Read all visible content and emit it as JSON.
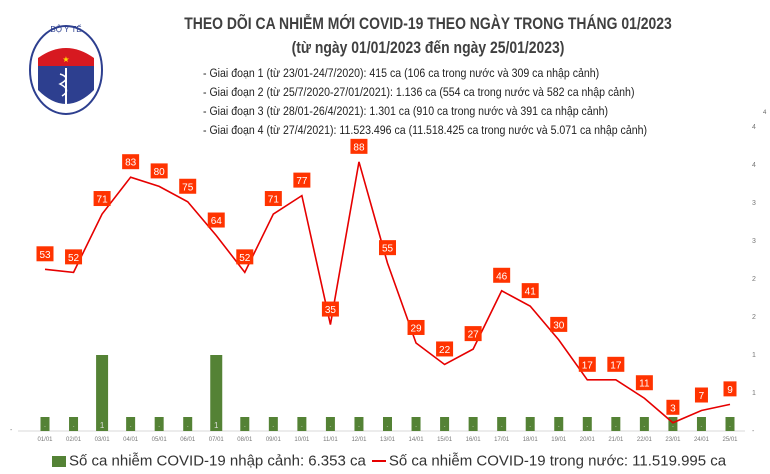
{
  "header": {
    "title_line1": "THEO DÕI CA NHIỄM MỚI COVID-19 THEO NGÀY TRONG THÁNG 01/2023",
    "title_line2": "(từ ngày 01/01/2023 đến ngày 25/01/2023)",
    "periods": [
      "- Giai đoạn 1 (từ 23/01-24/7/2020): 415 ca (106 ca trong nước và 309 ca nhập cảnh)",
      "- Giai đoạn 2 (từ 25/7/2020-27/01/2021): 1.136 ca (554 ca trong nước và 582 ca nhập cảnh)",
      "- Giai đoạn 3 (từ 28/01-26/4/2021): 1.301 ca (910 ca trong nước và 391 ca nhập cảnh)",
      "- Giai đoạn 4 (từ 27/4/2021): 11.523.496 ca (11.518.425 ca trong nước và 5.071 ca nhập cảnh)"
    ],
    "logo_text_top": "BỘ Y TẾ",
    "logo_text_bottom": "MINISTRY OF HEALTH"
  },
  "chart_data": {
    "type": "bar+line",
    "categories": [
      "01/01",
      "02/01",
      "03/01",
      "04/01",
      "05/01",
      "06/01",
      "07/01",
      "08/01",
      "09/01",
      "10/01",
      "11/01",
      "12/01",
      "13/01",
      "14/01",
      "15/01",
      "16/01",
      "17/01",
      "18/01",
      "19/01",
      "20/01",
      "21/01",
      "22/01",
      "23/01",
      "24/01",
      "25/01"
    ],
    "series": [
      {
        "name": "Số ca nhiễm COVID-19 nhập cảnh: 6.353 ca",
        "type": "bar",
        "color": "#548235",
        "values": [
          0,
          0,
          1,
          0,
          0,
          0,
          1,
          0,
          0,
          0,
          0,
          0,
          0,
          0,
          0,
          0,
          0,
          0,
          0,
          0,
          0,
          0,
          0,
          0,
          0
        ],
        "labels": [
          "-",
          "-",
          "1",
          "-",
          "-",
          "-",
          "1",
          "-",
          "-",
          "-",
          "-",
          "-",
          "-",
          "-",
          "-",
          "-",
          "-",
          "-",
          "-",
          "-",
          "-",
          "-",
          "-",
          "-",
          "-"
        ]
      },
      {
        "name": "Số ca nhiễm COVID-19 trong nước: 11.519.995 ca",
        "type": "line",
        "color": "#e60000",
        "values": [
          53,
          52,
          71,
          83,
          80,
          75,
          64,
          52,
          71,
          77,
          35,
          88,
          55,
          29,
          22,
          27,
          46,
          41,
          30,
          17,
          17,
          11,
          3,
          7,
          9
        ]
      }
    ],
    "right_axis_ticks": [
      "4",
      "4",
      "3",
      "3",
      "2",
      "2",
      "1",
      "1",
      "-"
    ],
    "left_axis_ticks": [
      "-"
    ],
    "corner_label": "4",
    "label_color": "#ff3300"
  }
}
